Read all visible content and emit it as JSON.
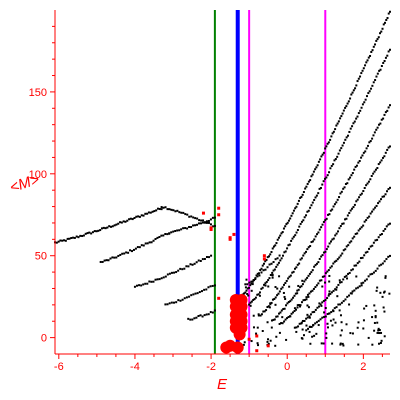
{
  "chart_data": {
    "type": "scatter",
    "title": "",
    "xlabel": "E",
    "ylabel": "<M>",
    "xlim": [
      -6.1,
      2.7
    ],
    "ylim": [
      -10,
      200
    ],
    "xticks": [
      -6,
      -4,
      -2,
      0,
      2
    ],
    "yticks": [
      0,
      50,
      100,
      150
    ],
    "grid": false,
    "axis_color": "#ff0000",
    "vertical_lines": [
      {
        "x": -1.9,
        "color": "#008000",
        "style": "thin"
      },
      {
        "x": -1.3,
        "color": "#0000ff",
        "style": "thick"
      },
      {
        "x": -1.0,
        "color": "#ff00ff",
        "style": "thin"
      },
      {
        "x": 1.0,
        "color": "#ff00ff",
        "style": "thin"
      }
    ],
    "series": [
      {
        "color": "#000000",
        "branches": [
          {
            "x0": -6.1,
            "x1": -3.3,
            "y0": 58,
            "y1": 79,
            "n": 60
          },
          {
            "x0": -3.3,
            "x1": -1.9,
            "y0": 80,
            "y1": 68,
            "n": 28
          },
          {
            "x0": -4.9,
            "x1": -3.1,
            "y0": 46,
            "y1": 64,
            "n": 36
          },
          {
            "x0": -3.1,
            "x1": -1.9,
            "y0": 64,
            "y1": 73,
            "n": 24
          },
          {
            "x0": -4.0,
            "x1": -2.0,
            "y0": 31,
            "y1": 50,
            "n": 38
          },
          {
            "x0": -3.2,
            "x1": -1.9,
            "y0": 20,
            "y1": 32,
            "n": 24
          },
          {
            "x0": -2.6,
            "x1": -1.9,
            "y0": 11,
            "y1": 16,
            "n": 14
          },
          {
            "x0": -1.2,
            "x1": 2.7,
            "y0": 25,
            "y1": 199,
            "n": 120
          },
          {
            "x0": -1.0,
            "x1": 2.7,
            "y0": 20,
            "y1": 176,
            "n": 105
          },
          {
            "x0": -0.7,
            "x1": 2.7,
            "y0": 14,
            "y1": 142,
            "n": 95
          },
          {
            "x0": -0.4,
            "x1": 2.7,
            "y0": 10,
            "y1": 117,
            "n": 85
          },
          {
            "x0": -0.2,
            "x1": 2.7,
            "y0": 8,
            "y1": 92,
            "n": 75
          },
          {
            "x0": 0.2,
            "x1": 2.7,
            "y0": 6,
            "y1": 70,
            "n": 60
          },
          {
            "x0": 0.5,
            "x1": 2.7,
            "y0": 5,
            "y1": 50,
            "n": 48
          },
          {
            "x0": -1.1,
            "x1": -0.2,
            "y0": 32,
            "y1": 50,
            "n": 18
          }
        ],
        "scatter_region": {
          "x0": -1.2,
          "x1": 2.7,
          "y0": -5,
          "y1": 40,
          "n": 160
        }
      },
      {
        "color": "#ff0000",
        "points": [
          [
            -2.0,
            66
          ],
          [
            -2.0,
            67
          ],
          [
            -1.8,
            75
          ],
          [
            -1.8,
            79
          ],
          [
            -2.2,
            76
          ],
          [
            -1.5,
            61
          ],
          [
            -1.5,
            60
          ],
          [
            -1.4,
            63
          ],
          [
            -0.6,
            50
          ],
          [
            -0.6,
            48
          ],
          [
            -1.8,
            24
          ],
          [
            -0.8,
            1
          ],
          [
            -0.5,
            -5
          ],
          [
            -0.8,
            -8
          ],
          [
            -1.2,
            16
          ],
          [
            -1.0,
            -1
          ]
        ],
        "blobs": [
          [
            -1.2,
            23
          ],
          [
            -1.35,
            23
          ],
          [
            -1.2,
            19
          ],
          [
            -1.35,
            19
          ],
          [
            -1.2,
            14
          ],
          [
            -1.35,
            14
          ],
          [
            -1.2,
            10
          ],
          [
            -1.35,
            10
          ],
          [
            -1.2,
            6
          ],
          [
            -1.35,
            6
          ],
          [
            -1.25,
            2
          ],
          [
            -1.5,
            -5
          ],
          [
            -1.6,
            -6
          ],
          [
            -1.3,
            -6
          ]
        ]
      }
    ]
  }
}
